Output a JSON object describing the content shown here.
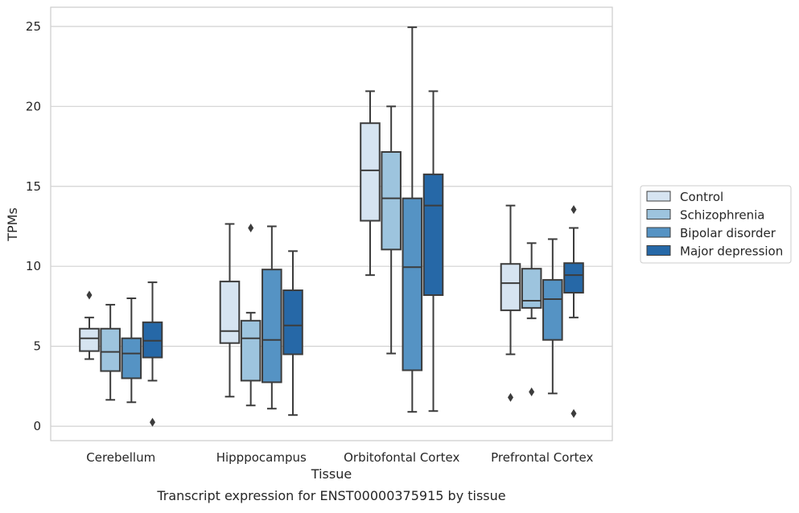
{
  "caption": "Transcript expression for ENST00000375915 by tissue",
  "chart_data": {
    "type": "box",
    "xlabel": "Tissue",
    "ylabel": "TPMs",
    "ylim": [
      -0.9,
      26.2
    ],
    "yticks": [
      0,
      5,
      10,
      15,
      20,
      25
    ],
    "grid": "horizontal",
    "legend_position": "right",
    "categories": [
      "Cerebellum",
      "Hipppocampus",
      "Orbitofontal Cortex",
      "Prefrontal Cortex"
    ],
    "series": [
      {
        "name": "Control",
        "color": "#d6e4f1",
        "boxes": [
          {
            "whisker_low": 4.2,
            "q1": 4.7,
            "median": 5.5,
            "q3": 6.1,
            "whisker_high": 6.8,
            "outliers": [
              8.2
            ]
          },
          {
            "whisker_low": 1.85,
            "q1": 5.2,
            "median": 5.95,
            "q3": 9.05,
            "whisker_high": 12.65,
            "outliers": []
          },
          {
            "whisker_low": 9.45,
            "q1": 12.85,
            "median": 16.0,
            "q3": 18.95,
            "whisker_high": 20.95,
            "outliers": []
          },
          {
            "whisker_low": 4.5,
            "q1": 7.25,
            "median": 8.95,
            "q3": 10.15,
            "whisker_high": 13.8,
            "outliers": [
              1.8
            ]
          }
        ]
      },
      {
        "name": "Schizophrenia",
        "color": "#9dc4de",
        "boxes": [
          {
            "whisker_low": 1.65,
            "q1": 3.45,
            "median": 4.65,
            "q3": 6.1,
            "whisker_high": 7.6,
            "outliers": []
          },
          {
            "whisker_low": 1.3,
            "q1": 2.85,
            "median": 5.5,
            "q3": 6.6,
            "whisker_high": 7.1,
            "outliers": [
              12.4
            ]
          },
          {
            "whisker_low": 4.55,
            "q1": 11.05,
            "median": 14.25,
            "q3": 17.15,
            "whisker_high": 20.0,
            "outliers": []
          },
          {
            "whisker_low": 6.75,
            "q1": 7.4,
            "median": 7.85,
            "q3": 9.85,
            "whisker_high": 11.45,
            "outliers": [
              2.15
            ]
          }
        ]
      },
      {
        "name": "Bipolar disorder",
        "color": "#5593c4",
        "boxes": [
          {
            "whisker_low": 1.5,
            "q1": 3.0,
            "median": 4.55,
            "q3": 5.5,
            "whisker_high": 8.0,
            "outliers": []
          },
          {
            "whisker_low": 1.1,
            "q1": 2.75,
            "median": 5.4,
            "q3": 9.8,
            "whisker_high": 12.5,
            "outliers": []
          },
          {
            "whisker_low": 0.9,
            "q1": 3.5,
            "median": 9.95,
            "q3": 14.25,
            "whisker_high": 24.95,
            "outliers": []
          },
          {
            "whisker_low": 2.05,
            "q1": 5.4,
            "median": 7.95,
            "q3": 9.15,
            "whisker_high": 11.7,
            "outliers": []
          }
        ]
      },
      {
        "name": "Major depression",
        "color": "#2668a7",
        "boxes": [
          {
            "whisker_low": 2.85,
            "q1": 4.3,
            "median": 5.35,
            "q3": 6.5,
            "whisker_high": 9.0,
            "outliers": [
              0.25
            ]
          },
          {
            "whisker_low": 0.7,
            "q1": 4.5,
            "median": 6.3,
            "q3": 8.5,
            "whisker_high": 10.95,
            "outliers": []
          },
          {
            "whisker_low": 0.95,
            "q1": 8.2,
            "median": 13.8,
            "q3": 15.75,
            "whisker_high": 20.95,
            "outliers": []
          },
          {
            "whisker_low": 6.8,
            "q1": 8.35,
            "median": 9.45,
            "q3": 10.2,
            "whisker_high": 12.4,
            "outliers": [
              0.8,
              13.55
            ]
          }
        ]
      }
    ]
  }
}
